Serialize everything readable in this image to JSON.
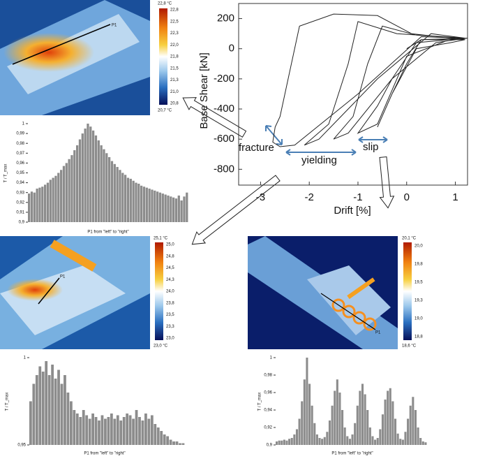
{
  "chart_data": [
    {
      "type": "line",
      "color": "#222",
      "x": [
        0,
        0.3,
        1.2,
        0.9,
        0.2,
        -0.3,
        -0.6,
        -0.3,
        0,
        0.3,
        1.25,
        0.8,
        0,
        -0.6,
        -1.0,
        -0.6,
        -0.3,
        0.2,
        1.2,
        0.6,
        -0.3,
        -1.2,
        -1.5,
        -1.1,
        -0.8,
        -0.5,
        0.2,
        1.2,
        0.5,
        -0.6,
        -1.8,
        -2.1,
        -1.6,
        -1.2,
        -1.0,
        -0.2,
        1.2,
        0.3,
        -1.0,
        -2.3,
        -2.6,
        -2.75,
        -2.7,
        -2.6,
        -2.2,
        -1.5,
        -0.6,
        0.1,
        1.2
      ],
      "y": [
        0,
        60,
        60,
        40,
        0,
        -300,
        -520,
        -300,
        -100,
        60,
        70,
        50,
        -50,
        -500,
        -560,
        -380,
        -200,
        40,
        70,
        40,
        -200,
        -560,
        -600,
        -450,
        -100,
        150,
        90,
        70,
        100,
        -200,
        -600,
        -640,
        -500,
        -100,
        180,
        100,
        70,
        80,
        -300,
        -640,
        -650,
        -620,
        -520,
        -450,
        150,
        230,
        220,
        100,
        60
      ],
      "xlim": [
        -3.45,
        1.25
      ],
      "ylim": [
        -905,
        300
      ],
      "xticks": [
        -3,
        -2,
        -1,
        0,
        1
      ],
      "yticks": [
        200,
        0,
        -200,
        -400,
        -600,
        -800
      ],
      "xlabel": "Drift [%]",
      "ylabel": "Base Shear [kN]",
      "annotations": [
        "fracture",
        "yielding",
        "slip"
      ]
    },
    {
      "type": "bar",
      "color": "#8c8c8c",
      "ylabel": "T / T_max",
      "xlabel": "P1 from \"left\" to \"right\"",
      "ylim": [
        0.9,
        1
      ],
      "yticks": [
        1,
        {
          "value": 0.99,
          "label": "0,99"
        },
        {
          "value": 0.98,
          "label": "0,98"
        },
        {
          "value": 0.97,
          "label": "0,97"
        },
        {
          "value": 0.96,
          "label": "0,96"
        },
        {
          "value": 0.95,
          "label": "0,95"
        },
        {
          "value": 0.94,
          "label": "0,94"
        },
        {
          "value": 0.93,
          "label": "0,93"
        },
        {
          "value": 0.92,
          "label": "0,92"
        },
        {
          "value": 0.91,
          "label": "0,91"
        },
        {
          "value": 0.9,
          "label": "0,9"
        }
      ],
      "values": [
        0.929,
        0.931,
        0.93,
        0.934,
        0.935,
        0.936,
        0.938,
        0.94,
        0.943,
        0.945,
        0.947,
        0.95,
        0.953,
        0.957,
        0.96,
        0.964,
        0.968,
        0.973,
        0.978,
        0.984,
        0.99,
        0.995,
        1.0,
        0.997,
        0.993,
        0.988,
        0.983,
        0.978,
        0.974,
        0.97,
        0.966,
        0.962,
        0.959,
        0.956,
        0.953,
        0.95,
        0.948,
        0.945,
        0.944,
        0.942,
        0.94,
        0.939,
        0.937,
        0.936,
        0.935,
        0.934,
        0.933,
        0.932,
        0.931,
        0.93,
        0.929,
        0.928,
        0.927,
        0.926,
        0.925,
        0.924,
        0.927,
        0.922,
        0.926,
        0.93
      ]
    },
    {
      "type": "bar",
      "color": "#8c8c8c",
      "ylabel": "T / T_max",
      "xlabel": "P1 from \"left\" to \"right\"",
      "ylim": [
        0.95,
        1
      ],
      "yticks": [
        1,
        {
          "value": 0.95,
          "label": "0,95"
        }
      ],
      "values": [
        0.975,
        0.985,
        0.99,
        0.995,
        0.992,
        0.998,
        0.99,
        0.996,
        0.988,
        0.993,
        0.985,
        0.99,
        0.98,
        0.975,
        0.97,
        0.968,
        0.966,
        0.97,
        0.967,
        0.965,
        0.968,
        0.966,
        0.964,
        0.967,
        0.965,
        0.966,
        0.968,
        0.965,
        0.967,
        0.964,
        0.966,
        0.968,
        0.967,
        0.965,
        0.97,
        0.966,
        0.964,
        0.968,
        0.965,
        0.967,
        0.962,
        0.96,
        0.958,
        0.956,
        0.955,
        0.953,
        0.952,
        0.952,
        0.951,
        0.951
      ]
    },
    {
      "type": "bar",
      "color": "#8c8c8c",
      "ylabel": "T / T_max",
      "xlabel": "P1 from \"left\" to \"right\"",
      "ylim": [
        0.9,
        1
      ],
      "yticks": [
        1,
        {
          "value": 0.98,
          "label": "0,98"
        },
        {
          "value": 0.96,
          "label": "0,96"
        },
        {
          "value": 0.94,
          "label": "0,94"
        },
        {
          "value": 0.92,
          "label": "0,92"
        },
        {
          "value": 0.9,
          "label": "0,9"
        }
      ],
      "values": [
        0.904,
        0.905,
        0.905,
        0.906,
        0.905,
        0.907,
        0.908,
        0.912,
        0.918,
        0.93,
        0.95,
        0.975,
        1.0,
        0.97,
        0.945,
        0.925,
        0.912,
        0.908,
        0.907,
        0.909,
        0.915,
        0.928,
        0.945,
        0.962,
        0.975,
        0.96,
        0.94,
        0.92,
        0.91,
        0.907,
        0.912,
        0.925,
        0.945,
        0.962,
        0.97,
        0.958,
        0.94,
        0.92,
        0.91,
        0.906,
        0.908,
        0.918,
        0.935,
        0.952,
        0.962,
        0.965,
        0.95,
        0.93,
        0.913,
        0.907,
        0.906,
        0.915,
        0.93,
        0.945,
        0.955,
        0.94,
        0.92,
        0.908,
        0.904,
        0.903
      ]
    }
  ],
  "thermal_images": [
    {
      "scale_max": "22,8 °C",
      "scale_min": "20,7 °C",
      "scale_ticks": [
        "22,8",
        "22,5",
        "22,3",
        "22,0",
        "21,8",
        "21,5",
        "21,3",
        "21,0",
        "20,8"
      ],
      "marker": "P1"
    },
    {
      "scale_max": "25,1 °C",
      "scale_min": "23,0 °C",
      "scale_ticks": [
        "25,0",
        "24,8",
        "24,5",
        "24,3",
        "24,0",
        "23,8",
        "23,5",
        "23,3",
        "23,0"
      ],
      "marker": "P1"
    },
    {
      "scale_max": "20,1 °C",
      "scale_min": "18,6 °C",
      "scale_ticks": [
        "20,0",
        "19,8",
        "19,5",
        "19,3",
        "19,0",
        "18,8"
      ],
      "marker": "P1"
    }
  ]
}
